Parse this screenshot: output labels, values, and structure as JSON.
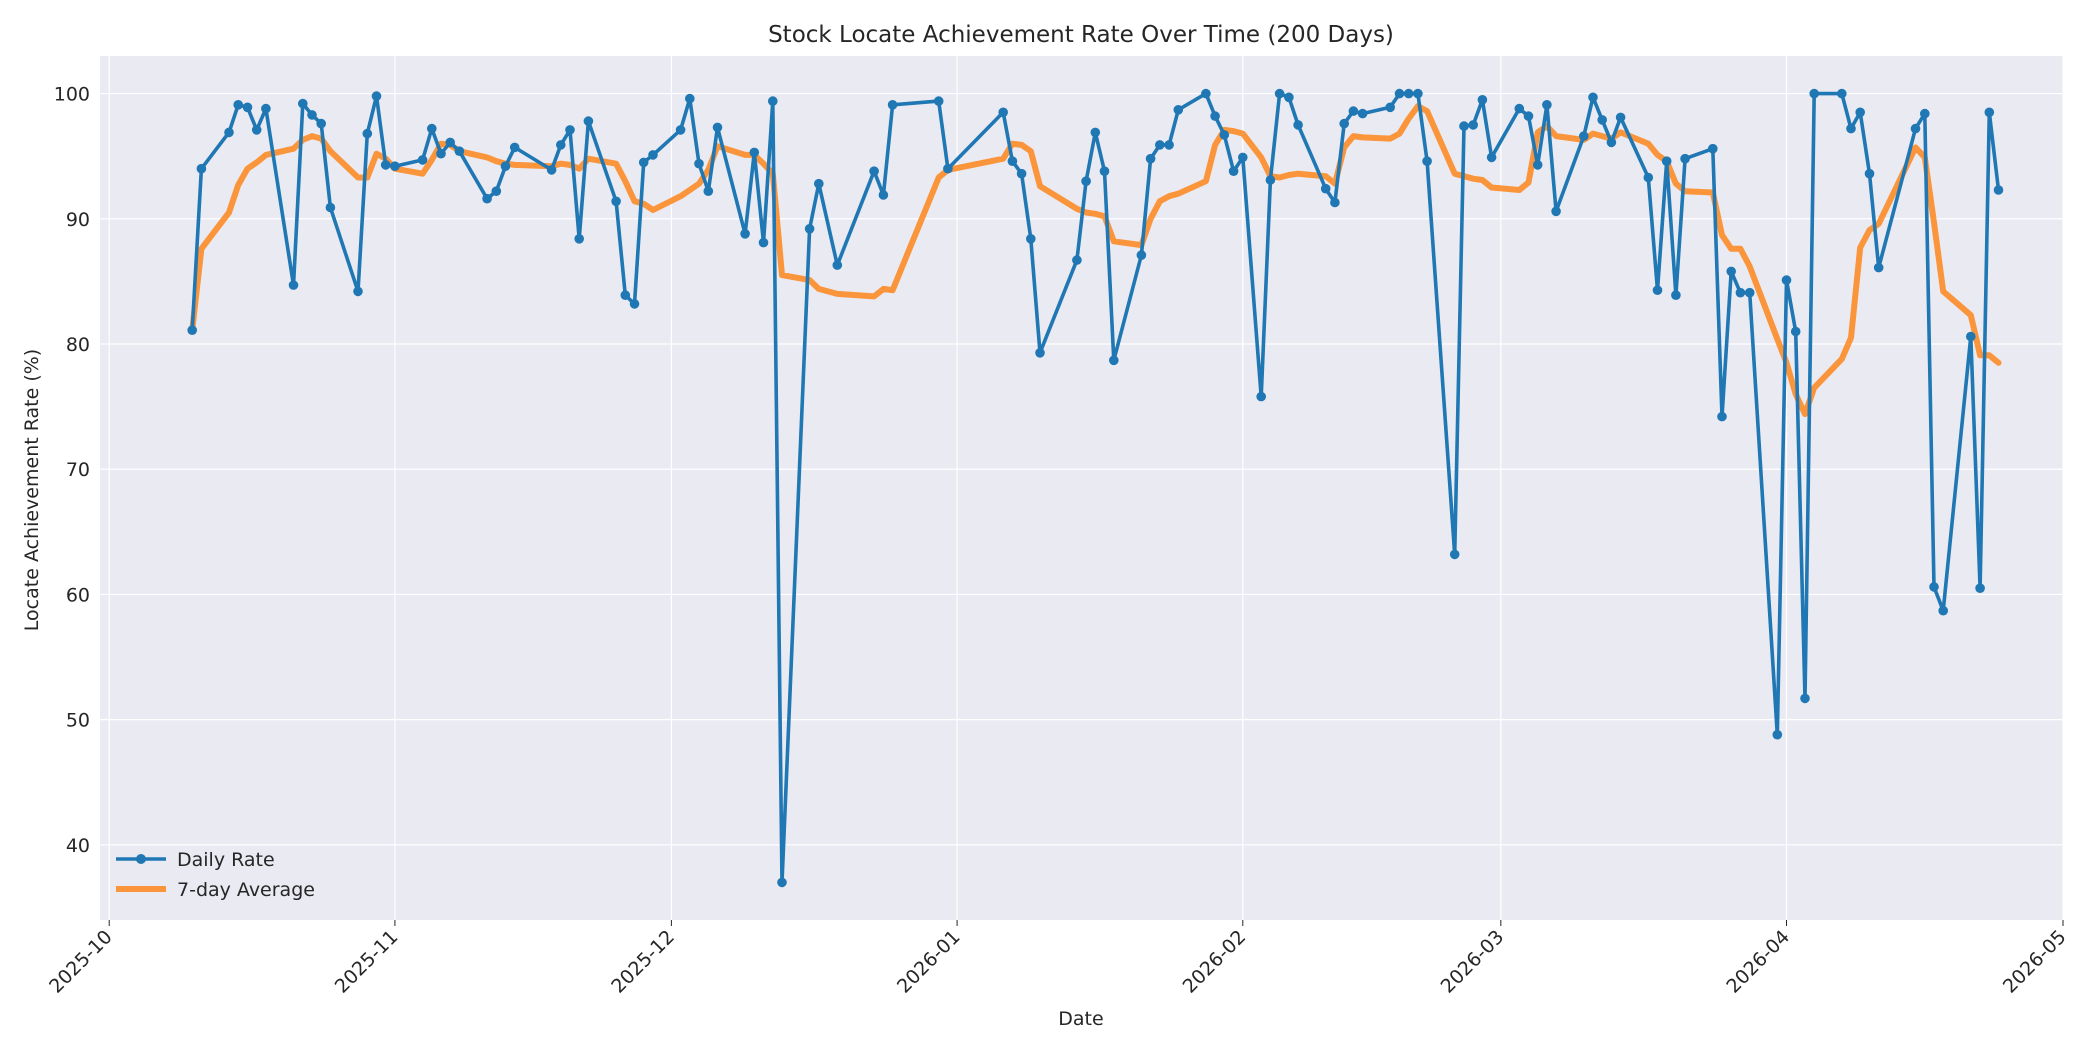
{
  "chart_data": {
    "type": "line",
    "title": "Stock Locate Achievement Rate Over Time (200 Days)",
    "xlabel": "Date",
    "ylabel": "Locate Achievement Rate (%)",
    "xlim": [
      "2025-09-30",
      "2026-05-01"
    ],
    "ylim": [
      34,
      103
    ],
    "grid": true,
    "legend_position": "bottom-left",
    "colors": {
      "daily": "#1f77b4",
      "average": "#ff7f0e",
      "plot_bg": "#eaeaf2",
      "grid": "#ffffff",
      "figure_bg": "#ffffff"
    },
    "x_ticks": [
      "2025-10",
      "2025-11",
      "2025-12",
      "2026-01",
      "2026-02",
      "2026-03",
      "2026-04",
      "2026-05"
    ],
    "y_ticks": [
      "40",
      "50",
      "60",
      "70",
      "80",
      "90",
      "100"
    ],
    "legend": [
      "Daily Rate",
      "7-day Average"
    ],
    "series": [
      {
        "name": "Daily Rate",
        "points": [
          [
            "2025-10-10",
            81.1
          ],
          [
            "2025-10-11",
            94.0
          ],
          [
            "2025-10-14",
            96.9
          ],
          [
            "2025-10-15",
            99.1
          ],
          [
            "2025-10-16",
            98.9
          ],
          [
            "2025-10-17",
            97.1
          ],
          [
            "2025-10-18",
            98.8
          ],
          [
            "2025-10-21",
            84.7
          ],
          [
            "2025-10-22",
            99.2
          ],
          [
            "2025-10-23",
            98.3
          ],
          [
            "2025-10-24",
            97.6
          ],
          [
            "2025-10-25",
            90.9
          ],
          [
            "2025-10-28",
            84.2
          ],
          [
            "2025-10-29",
            96.8
          ],
          [
            "2025-10-30",
            99.8
          ],
          [
            "2025-10-31",
            94.3
          ],
          [
            "2025-11-01",
            94.2
          ],
          [
            "2025-11-04",
            94.7
          ],
          [
            "2025-11-05",
            97.2
          ],
          [
            "2025-11-06",
            95.2
          ],
          [
            "2025-11-07",
            96.1
          ],
          [
            "2025-11-08",
            95.4
          ],
          [
            "2025-11-11",
            91.6
          ],
          [
            "2025-11-12",
            92.2
          ],
          [
            "2025-11-13",
            94.2
          ],
          [
            "2025-11-14",
            95.7
          ],
          [
            "2025-11-18",
            93.9
          ],
          [
            "2025-11-19",
            95.9
          ],
          [
            "2025-11-20",
            97.1
          ],
          [
            "2025-11-21",
            88.4
          ],
          [
            "2025-11-22",
            97.8
          ],
          [
            "2025-11-25",
            91.4
          ],
          [
            "2025-11-26",
            83.9
          ],
          [
            "2025-11-27",
            83.2
          ],
          [
            "2025-11-28",
            94.5
          ],
          [
            "2025-11-29",
            95.1
          ],
          [
            "2025-12-02",
            97.1
          ],
          [
            "2025-12-03",
            99.6
          ],
          [
            "2025-12-04",
            94.4
          ],
          [
            "2025-12-05",
            92.2
          ],
          [
            "2025-12-06",
            97.3
          ],
          [
            "2025-12-09",
            88.8
          ],
          [
            "2025-12-10",
            95.3
          ],
          [
            "2025-12-11",
            88.1
          ],
          [
            "2025-12-12",
            99.4
          ],
          [
            "2025-12-13",
            37.0
          ],
          [
            "2025-12-16",
            89.2
          ],
          [
            "2025-12-17",
            92.8
          ],
          [
            "2025-12-19",
            86.3
          ],
          [
            "2025-12-23",
            93.8
          ],
          [
            "2025-12-24",
            91.9
          ],
          [
            "2025-12-25",
            99.1
          ],
          [
            "2025-12-30",
            99.4
          ],
          [
            "2025-12-31",
            94.0
          ],
          [
            "2026-01-06",
            98.5
          ],
          [
            "2026-01-07",
            94.6
          ],
          [
            "2026-01-08",
            93.6
          ],
          [
            "2026-01-09",
            88.4
          ],
          [
            "2026-01-10",
            79.3
          ],
          [
            "2026-01-14",
            86.7
          ],
          [
            "2026-01-15",
            93.0
          ],
          [
            "2026-01-16",
            96.9
          ],
          [
            "2026-01-17",
            93.8
          ],
          [
            "2026-01-18",
            78.7
          ],
          [
            "2026-01-21",
            87.1
          ],
          [
            "2026-01-22",
            94.8
          ],
          [
            "2026-01-23",
            95.9
          ],
          [
            "2026-01-24",
            95.9
          ],
          [
            "2026-01-25",
            98.7
          ],
          [
            "2026-01-28",
            100.0
          ],
          [
            "2026-01-29",
            98.2
          ],
          [
            "2026-01-30",
            96.7
          ],
          [
            "2026-01-31",
            93.8
          ],
          [
            "2026-02-01",
            94.9
          ],
          [
            "2026-02-03",
            75.8
          ],
          [
            "2026-02-04",
            93.1
          ],
          [
            "2026-02-05",
            100.0
          ],
          [
            "2026-02-06",
            99.7
          ],
          [
            "2026-02-07",
            97.5
          ],
          [
            "2026-02-10",
            92.4
          ],
          [
            "2026-02-11",
            91.3
          ],
          [
            "2026-02-12",
            97.6
          ],
          [
            "2026-02-13",
            98.6
          ],
          [
            "2026-02-14",
            98.4
          ],
          [
            "2026-02-17",
            98.9
          ],
          [
            "2026-02-18",
            100.0
          ],
          [
            "2026-02-19",
            100.0
          ],
          [
            "2026-02-20",
            100.0
          ],
          [
            "2026-02-21",
            94.6
          ],
          [
            "2026-02-24",
            63.2
          ],
          [
            "2026-02-25",
            97.4
          ],
          [
            "2026-02-26",
            97.5
          ],
          [
            "2026-02-27",
            99.5
          ],
          [
            "2026-02-28",
            94.9
          ],
          [
            "2026-03-03",
            98.8
          ],
          [
            "2026-03-04",
            98.2
          ],
          [
            "2026-03-05",
            94.3
          ],
          [
            "2026-03-06",
            99.1
          ],
          [
            "2026-03-07",
            90.6
          ],
          [
            "2026-03-10",
            96.6
          ],
          [
            "2026-03-11",
            99.7
          ],
          [
            "2026-03-12",
            97.9
          ],
          [
            "2026-03-13",
            96.1
          ],
          [
            "2026-03-14",
            98.1
          ],
          [
            "2026-03-17",
            93.3
          ],
          [
            "2026-03-18",
            84.3
          ],
          [
            "2026-03-19",
            94.6
          ],
          [
            "2026-03-20",
            83.9
          ],
          [
            "2026-03-21",
            94.8
          ],
          [
            "2026-03-24",
            95.6
          ],
          [
            "2026-03-25",
            74.2
          ],
          [
            "2026-03-26",
            85.8
          ],
          [
            "2026-03-27",
            84.1
          ],
          [
            "2026-03-28",
            84.1
          ],
          [
            "2026-03-31",
            48.8
          ],
          [
            "2026-04-01",
            85.1
          ],
          [
            "2026-04-02",
            81.0
          ],
          [
            "2026-04-03",
            51.7
          ],
          [
            "2026-04-04",
            100.0
          ],
          [
            "2026-04-07",
            100.0
          ],
          [
            "2026-04-08",
            97.2
          ],
          [
            "2026-04-09",
            98.5
          ],
          [
            "2026-04-10",
            93.6
          ],
          [
            "2026-04-11",
            86.1
          ],
          [
            "2026-04-15",
            97.2
          ],
          [
            "2026-04-16",
            98.4
          ],
          [
            "2026-04-17",
            60.6
          ],
          [
            "2026-04-18",
            58.7
          ],
          [
            "2026-04-21",
            80.6
          ],
          [
            "2026-04-22",
            60.5
          ],
          [
            "2026-04-23",
            98.5
          ],
          [
            "2026-04-24",
            92.3
          ]
        ]
      },
      {
        "name": "7-day Average",
        "points": [
          [
            "2025-10-10",
            81.1
          ],
          [
            "2025-10-11",
            87.6
          ],
          [
            "2025-10-14",
            90.5
          ],
          [
            "2025-10-15",
            92.7
          ],
          [
            "2025-10-16",
            94.0
          ],
          [
            "2025-10-17",
            94.5
          ],
          [
            "2025-10-18",
            95.1
          ],
          [
            "2025-10-21",
            95.6
          ],
          [
            "2025-10-22",
            96.3
          ],
          [
            "2025-10-23",
            96.6
          ],
          [
            "2025-10-24",
            96.4
          ],
          [
            "2025-10-25",
            95.4
          ],
          [
            "2025-10-28",
            93.3
          ],
          [
            "2025-10-29",
            93.3
          ],
          [
            "2025-10-30",
            95.2
          ],
          [
            "2025-10-31",
            94.8
          ],
          [
            "2025-11-01",
            94.0
          ],
          [
            "2025-11-04",
            93.6
          ],
          [
            "2025-11-05",
            94.7
          ],
          [
            "2025-11-06",
            96.0
          ],
          [
            "2025-11-07",
            95.9
          ],
          [
            "2025-11-08",
            95.4
          ],
          [
            "2025-11-11",
            94.9
          ],
          [
            "2025-11-12",
            94.6
          ],
          [
            "2025-11-13",
            94.4
          ],
          [
            "2025-11-14",
            94.3
          ],
          [
            "2025-11-18",
            94.2
          ],
          [
            "2025-11-19",
            94.4
          ],
          [
            "2025-11-20",
            94.3
          ],
          [
            "2025-11-21",
            94.0
          ],
          [
            "2025-11-22",
            94.8
          ],
          [
            "2025-11-25",
            94.4
          ],
          [
            "2025-11-26",
            93.0
          ],
          [
            "2025-11-27",
            91.4
          ],
          [
            "2025-11-28",
            91.2
          ],
          [
            "2025-11-29",
            90.7
          ],
          [
            "2025-12-02",
            91.8
          ],
          [
            "2025-12-03",
            92.3
          ],
          [
            "2025-12-04",
            92.8
          ],
          [
            "2025-12-05",
            93.9
          ],
          [
            "2025-12-06",
            95.8
          ],
          [
            "2025-12-09",
            95.1
          ],
          [
            "2025-12-10",
            95.1
          ],
          [
            "2025-12-11",
            94.4
          ],
          [
            "2025-12-12",
            93.6
          ],
          [
            "2025-12-13",
            85.5
          ],
          [
            "2025-12-16",
            85.1
          ],
          [
            "2025-12-17",
            84.4
          ],
          [
            "2025-12-19",
            84.0
          ],
          [
            "2025-12-23",
            83.8
          ],
          [
            "2025-12-24",
            84.4
          ],
          [
            "2025-12-25",
            84.3
          ],
          [
            "2025-12-30",
            93.3
          ],
          [
            "2025-12-31",
            93.9
          ],
          [
            "2026-01-06",
            94.8
          ],
          [
            "2026-01-07",
            96.0
          ],
          [
            "2026-01-08",
            95.9
          ],
          [
            "2026-01-09",
            95.4
          ],
          [
            "2026-01-10",
            92.6
          ],
          [
            "2026-01-14",
            90.8
          ],
          [
            "2026-01-15",
            90.5
          ],
          [
            "2026-01-16",
            90.4
          ],
          [
            "2026-01-17",
            90.2
          ],
          [
            "2026-01-18",
            88.2
          ],
          [
            "2026-01-21",
            87.9
          ],
          [
            "2026-01-22",
            90.0
          ],
          [
            "2026-01-23",
            91.4
          ],
          [
            "2026-01-24",
            91.8
          ],
          [
            "2026-01-25",
            92.0
          ],
          [
            "2026-01-28",
            93.0
          ],
          [
            "2026-01-29",
            95.9
          ],
          [
            "2026-01-30",
            97.1
          ],
          [
            "2026-01-31",
            97.0
          ],
          [
            "2026-02-01",
            96.8
          ],
          [
            "2026-02-03",
            94.9
          ],
          [
            "2026-02-04",
            93.4
          ],
          [
            "2026-02-05",
            93.3
          ],
          [
            "2026-02-06",
            93.5
          ],
          [
            "2026-02-07",
            93.6
          ],
          [
            "2026-02-10",
            93.4
          ],
          [
            "2026-02-11",
            92.8
          ],
          [
            "2026-02-12",
            95.7
          ],
          [
            "2026-02-13",
            96.6
          ],
          [
            "2026-02-14",
            96.5
          ],
          [
            "2026-02-17",
            96.4
          ],
          [
            "2026-02-18",
            96.8
          ],
          [
            "2026-02-19",
            98.0
          ],
          [
            "2026-02-20",
            99.0
          ],
          [
            "2026-02-21",
            98.6
          ],
          [
            "2026-02-24",
            93.6
          ],
          [
            "2026-02-25",
            93.4
          ],
          [
            "2026-02-26",
            93.2
          ],
          [
            "2026-02-27",
            93.1
          ],
          [
            "2026-02-28",
            92.5
          ],
          [
            "2026-03-03",
            92.3
          ],
          [
            "2026-03-04",
            92.9
          ],
          [
            "2026-03-05",
            96.9
          ],
          [
            "2026-03-06",
            97.4
          ],
          [
            "2026-03-07",
            96.6
          ],
          [
            "2026-03-10",
            96.3
          ],
          [
            "2026-03-11",
            96.8
          ],
          [
            "2026-03-12",
            96.6
          ],
          [
            "2026-03-13",
            96.4
          ],
          [
            "2026-03-14",
            96.9
          ],
          [
            "2026-03-17",
            96.0
          ],
          [
            "2026-03-18",
            95.1
          ],
          [
            "2026-03-19",
            94.6
          ],
          [
            "2026-03-20",
            92.8
          ],
          [
            "2026-03-21",
            92.2
          ],
          [
            "2026-03-24",
            92.1
          ],
          [
            "2026-03-25",
            88.7
          ],
          [
            "2026-03-26",
            87.6
          ],
          [
            "2026-03-27",
            87.6
          ],
          [
            "2026-03-28",
            86.2
          ],
          [
            "2026-03-31",
            80.4
          ],
          [
            "2026-04-01",
            78.5
          ],
          [
            "2026-04-02",
            76.0
          ],
          [
            "2026-04-03",
            74.4
          ],
          [
            "2026-04-04",
            76.5
          ],
          [
            "2026-04-07",
            78.8
          ],
          [
            "2026-04-08",
            80.5
          ],
          [
            "2026-04-09",
            87.7
          ],
          [
            "2026-04-10",
            89.1
          ],
          [
            "2026-04-11",
            89.6
          ],
          [
            "2026-04-15",
            95.7
          ],
          [
            "2026-04-16",
            94.9
          ],
          [
            "2026-04-17",
            89.7
          ],
          [
            "2026-04-18",
            84.2
          ],
          [
            "2026-04-21",
            82.3
          ],
          [
            "2026-04-22",
            79.1
          ],
          [
            "2026-04-23",
            79.1
          ],
          [
            "2026-04-24",
            78.5
          ]
        ]
      }
    ]
  }
}
